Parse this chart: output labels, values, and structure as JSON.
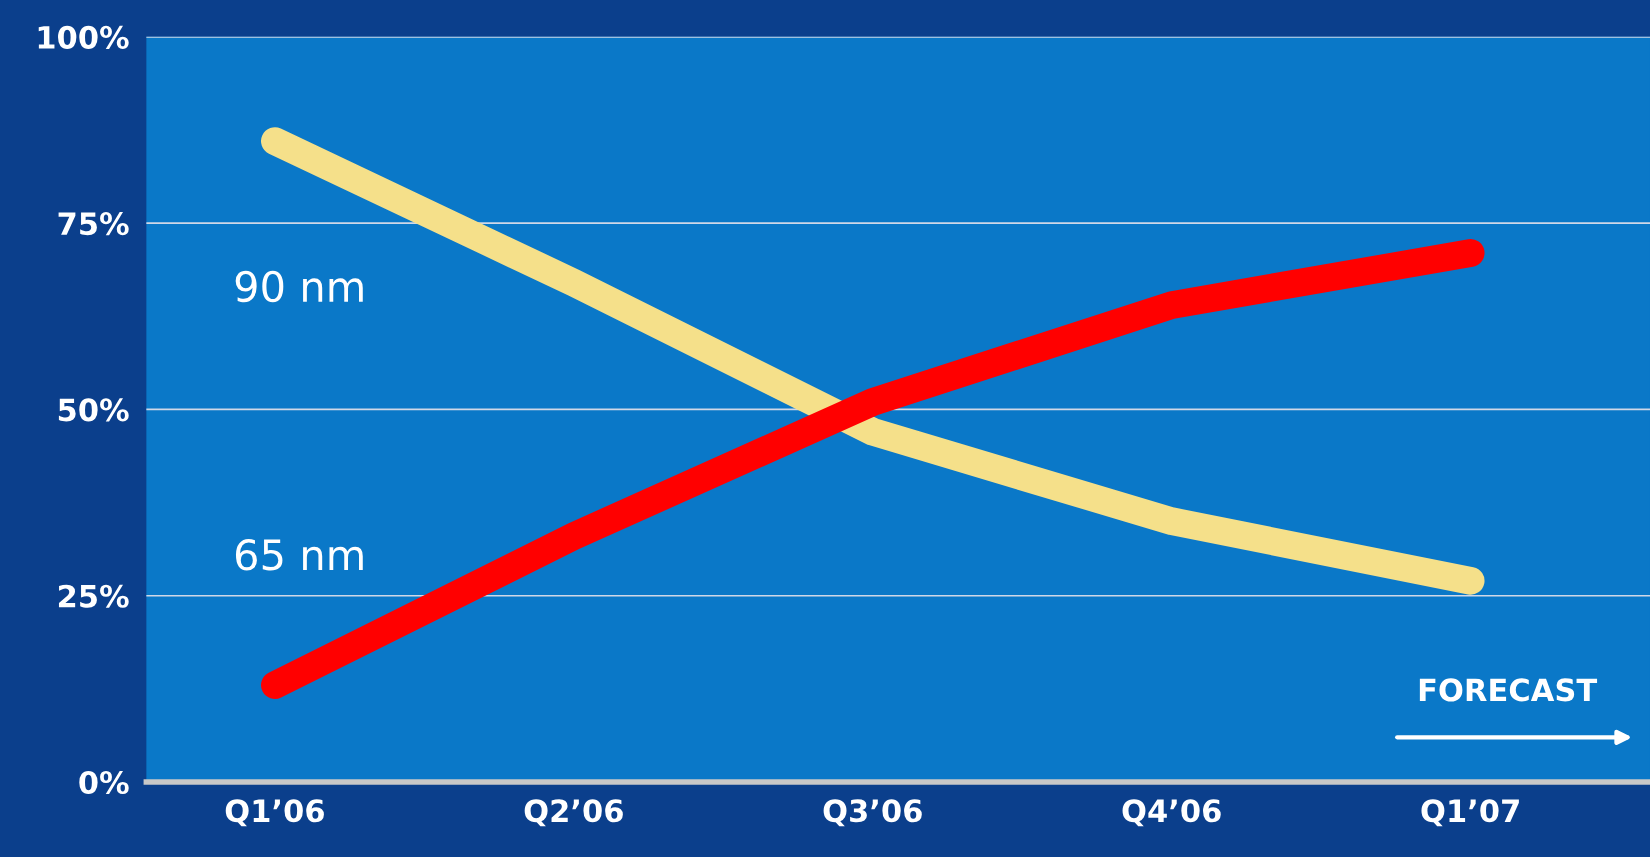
{
  "chart_data": {
    "type": "line",
    "categories": [
      "Q1’06",
      "Q2’06",
      "Q3’06",
      "Q4’06",
      "Q1’07"
    ],
    "series": [
      {
        "name": "90 nm",
        "color": "#f5e08a",
        "values": [
          86,
          67,
          47,
          35,
          27
        ]
      },
      {
        "name": "65 nm",
        "color": "#ff0000",
        "values": [
          13,
          33,
          51,
          64,
          71
        ]
      }
    ],
    "ylim": [
      0,
      100
    ],
    "yticks": [
      {
        "value": 0,
        "label": "0%"
      },
      {
        "value": 25,
        "label": "25%"
      },
      {
        "value": 50,
        "label": "50%"
      },
      {
        "value": 75,
        "label": "75%"
      },
      {
        "value": 100,
        "label": "100%"
      }
    ],
    "grid": "y",
    "legend": false,
    "line_style": "solid",
    "annotations": [
      "FORECAST"
    ]
  }
}
